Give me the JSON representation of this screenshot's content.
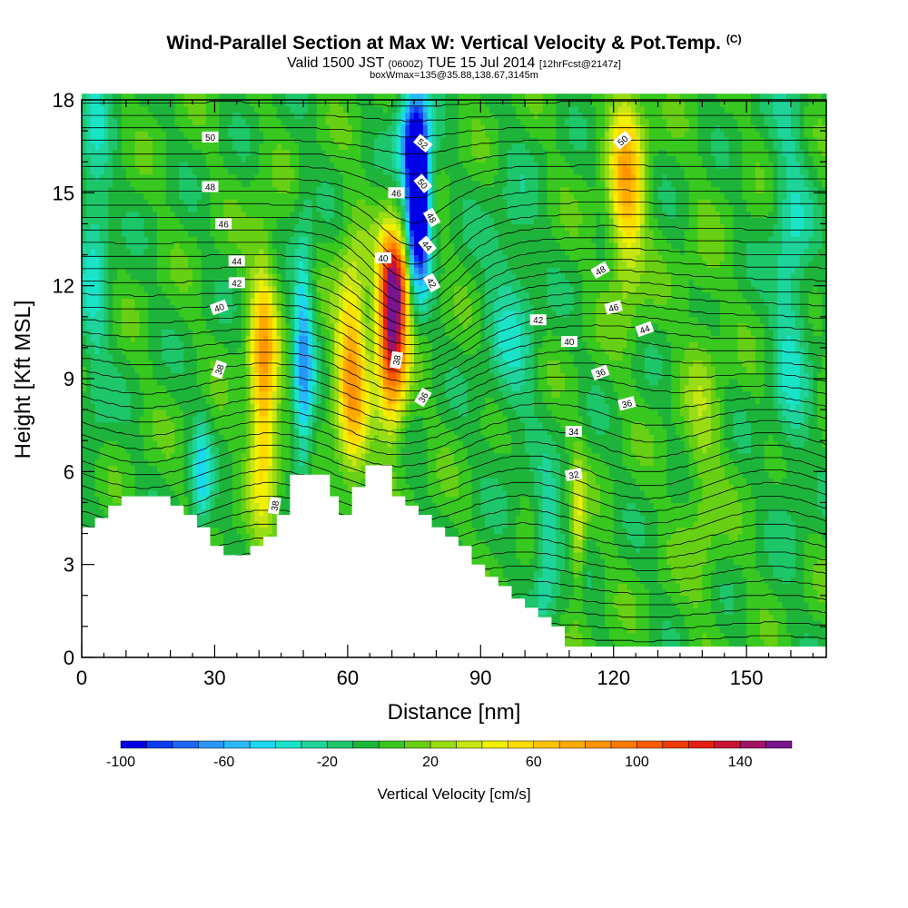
{
  "title": {
    "main": "Wind-Parallel Section at Max W: Vertical Velocity & Pot.Temp.",
    "copyright": "(C)",
    "valid_prefix": "Valid 1500 JST",
    "valid_zulu": "(0600Z)",
    "valid_suffix": "TUE 15 Jul 2014",
    "forecast": "[12hrFcst@2147z]",
    "box": "boxWmax=135@35.88,138.67,3145m"
  },
  "chart_data": {
    "type": "heatmap",
    "xlabel": "Distance [nm]",
    "ylabel": "Height [Kft MSL]",
    "xlim": [
      0,
      168
    ],
    "ylim": [
      0,
      18
    ],
    "x_ticks": [
      "0",
      "30",
      "60",
      "90",
      "120",
      "150"
    ],
    "y_ticks": [
      "0",
      "3",
      "6",
      "9",
      "12",
      "15",
      "18"
    ],
    "colorbar": {
      "title": "Vertical Velocity [cm/s]",
      "range": [
        -100,
        160
      ],
      "step": 10,
      "tick_labels": [
        "-100",
        "-60",
        "-20",
        "20",
        "60",
        "100",
        "140"
      ],
      "colors": [
        "#0000e6",
        "#0a3cf0",
        "#1e64f5",
        "#2896f8",
        "#2ab9f8",
        "#1ad8f0",
        "#1ae4c8",
        "#1ed49a",
        "#1ec66a",
        "#1eb43c",
        "#38c820",
        "#68d014",
        "#98dc14",
        "#c8e614",
        "#f0f000",
        "#ffdc00",
        "#ffc400",
        "#ffaa00",
        "#ff9400",
        "#ff7a00",
        "#fa5a00",
        "#f03c0a",
        "#e61e14",
        "#c81432",
        "#a01464",
        "#78148c"
      ]
    },
    "terrain_kft": [
      [
        0,
        4.2
      ],
      [
        3,
        4.2
      ],
      [
        3,
        4.5
      ],
      [
        6,
        4.5
      ],
      [
        6,
        4.9
      ],
      [
        9,
        4.9
      ],
      [
        9,
        5.2
      ],
      [
        20,
        5.2
      ],
      [
        20,
        4.9
      ],
      [
        23,
        4.9
      ],
      [
        23,
        4.6
      ],
      [
        26,
        4.6
      ],
      [
        26,
        4.2
      ],
      [
        29,
        4.2
      ],
      [
        29,
        3.6
      ],
      [
        32,
        3.6
      ],
      [
        32,
        3.3
      ],
      [
        38,
        3.3
      ],
      [
        38,
        3.6
      ],
      [
        41,
        3.6
      ],
      [
        41,
        3.9
      ],
      [
        44,
        3.9
      ],
      [
        44,
        4.6
      ],
      [
        47,
        4.6
      ],
      [
        47,
        5.9
      ],
      [
        56,
        5.9
      ],
      [
        56,
        5.2
      ],
      [
        58,
        5.2
      ],
      [
        58,
        4.6
      ],
      [
        61,
        4.6
      ],
      [
        61,
        5.5
      ],
      [
        64,
        5.5
      ],
      [
        64,
        6.2
      ],
      [
        70,
        6.2
      ],
      [
        70,
        5.2
      ],
      [
        73,
        5.2
      ],
      [
        73,
        4.9
      ],
      [
        76,
        4.9
      ],
      [
        76,
        4.6
      ],
      [
        79,
        4.6
      ],
      [
        79,
        4.2
      ],
      [
        82,
        4.2
      ],
      [
        82,
        3.9
      ],
      [
        85,
        3.9
      ],
      [
        85,
        3.6
      ],
      [
        88,
        3.6
      ],
      [
        88,
        3.0
      ],
      [
        91,
        3.0
      ],
      [
        91,
        2.6
      ],
      [
        94,
        2.6
      ],
      [
        94,
        2.3
      ],
      [
        97,
        2.3
      ],
      [
        97,
        1.9
      ],
      [
        100,
        1.9
      ],
      [
        100,
        1.6
      ],
      [
        103,
        1.6
      ],
      [
        103,
        1.3
      ],
      [
        106,
        1.3
      ],
      [
        106,
        1.0
      ],
      [
        109,
        1.0
      ],
      [
        109,
        0.35
      ],
      [
        168,
        0.35
      ]
    ],
    "w_features": [
      {
        "x": 70,
        "z": 10.5,
        "sx": 2.3,
        "sz": 2.0,
        "w": 140
      },
      {
        "x": 71,
        "z": 12.2,
        "sx": 2.2,
        "sz": 1.0,
        "w": 70
      },
      {
        "x": 61,
        "z": 9.3,
        "sx": 2.5,
        "sz": 2.5,
        "w": 80
      },
      {
        "x": 41,
        "z": 8.8,
        "sx": 2.2,
        "sz": 2.9,
        "w": 80
      },
      {
        "x": 123,
        "z": 15.3,
        "sx": 2.8,
        "sz": 2.4,
        "w": 70
      },
      {
        "x": 112,
        "z": 4.2,
        "sx": 1.1,
        "sz": 1.6,
        "w": 40
      },
      {
        "x": 76,
        "z": 14.8,
        "sx": 1.8,
        "sz": 1.8,
        "w": -160
      },
      {
        "x": 74,
        "z": 16.8,
        "sx": 2.2,
        "sz": 1.2,
        "w": -60
      },
      {
        "x": 50,
        "z": 9.5,
        "sx": 1.6,
        "sz": 3.0,
        "w": -60
      },
      {
        "x": 27,
        "z": 5.8,
        "sx": 1.5,
        "sz": 1.4,
        "w": -40
      },
      {
        "x": 105,
        "z": 3.5,
        "sx": 2.0,
        "sz": 1.5,
        "w": -40
      },
      {
        "x": 160,
        "z": 12.0,
        "sx": 3.0,
        "sz": 5.0,
        "w": -30
      },
      {
        "x": 3,
        "z": 14.0,
        "sx": 2.5,
        "sz": 4.5,
        "w": -30
      },
      {
        "x": 140,
        "z": 7.0,
        "sx": 3.0,
        "sz": 4.0,
        "w": 20
      },
      {
        "x": 97,
        "z": 11.0,
        "sx": 4.0,
        "sz": 3.0,
        "w": -25
      }
    ],
    "contour_labels": [
      {
        "text": "50",
        "x": 29,
        "z": 16.8,
        "rot": 0
      },
      {
        "text": "48",
        "x": 29,
        "z": 15.2,
        "rot": 0
      },
      {
        "text": "46",
        "x": 32,
        "z": 14.0,
        "rot": 0
      },
      {
        "text": "44",
        "x": 35,
        "z": 12.8,
        "rot": 0
      },
      {
        "text": "42",
        "x": 35,
        "z": 12.1,
        "rot": 0
      },
      {
        "text": "40",
        "x": 31,
        "z": 11.3,
        "rot": -20
      },
      {
        "text": "38",
        "x": 31,
        "z": 9.3,
        "rot": -70
      },
      {
        "text": "38",
        "x": 43.5,
        "z": 4.9,
        "rot": -80
      },
      {
        "text": "46",
        "x": 71,
        "z": 15.0,
        "rot": 0
      },
      {
        "text": "40",
        "x": 68,
        "z": 12.9,
        "rot": 0
      },
      {
        "text": "38",
        "x": 71,
        "z": 9.6,
        "rot": -80
      },
      {
        "text": "36",
        "x": 77,
        "z": 8.4,
        "rot": -60
      },
      {
        "text": "52",
        "x": 77,
        "z": 16.6,
        "rot": 40
      },
      {
        "text": "50",
        "x": 77,
        "z": 15.3,
        "rot": 50
      },
      {
        "text": "48",
        "x": 79,
        "z": 14.2,
        "rot": 60
      },
      {
        "text": "44",
        "x": 78,
        "z": 13.3,
        "rot": 50
      },
      {
        "text": "42",
        "x": 79,
        "z": 12.1,
        "rot": 60
      },
      {
        "text": "50",
        "x": 122,
        "z": 16.7,
        "rot": -40
      },
      {
        "text": "48",
        "x": 117,
        "z": 12.5,
        "rot": -30
      },
      {
        "text": "46",
        "x": 120,
        "z": 11.3,
        "rot": -15
      },
      {
        "text": "44",
        "x": 127,
        "z": 10.6,
        "rot": -20
      },
      {
        "text": "42",
        "x": 103,
        "z": 10.9,
        "rot": 0
      },
      {
        "text": "40",
        "x": 110,
        "z": 10.2,
        "rot": 0
      },
      {
        "text": "36",
        "x": 117,
        "z": 9.2,
        "rot": -20
      },
      {
        "text": "36",
        "x": 123,
        "z": 8.2,
        "rot": -15
      },
      {
        "text": "34",
        "x": 111,
        "z": 7.3,
        "rot": 0
      },
      {
        "text": "32",
        "x": 111,
        "z": 5.9,
        "rot": -10
      }
    ]
  }
}
